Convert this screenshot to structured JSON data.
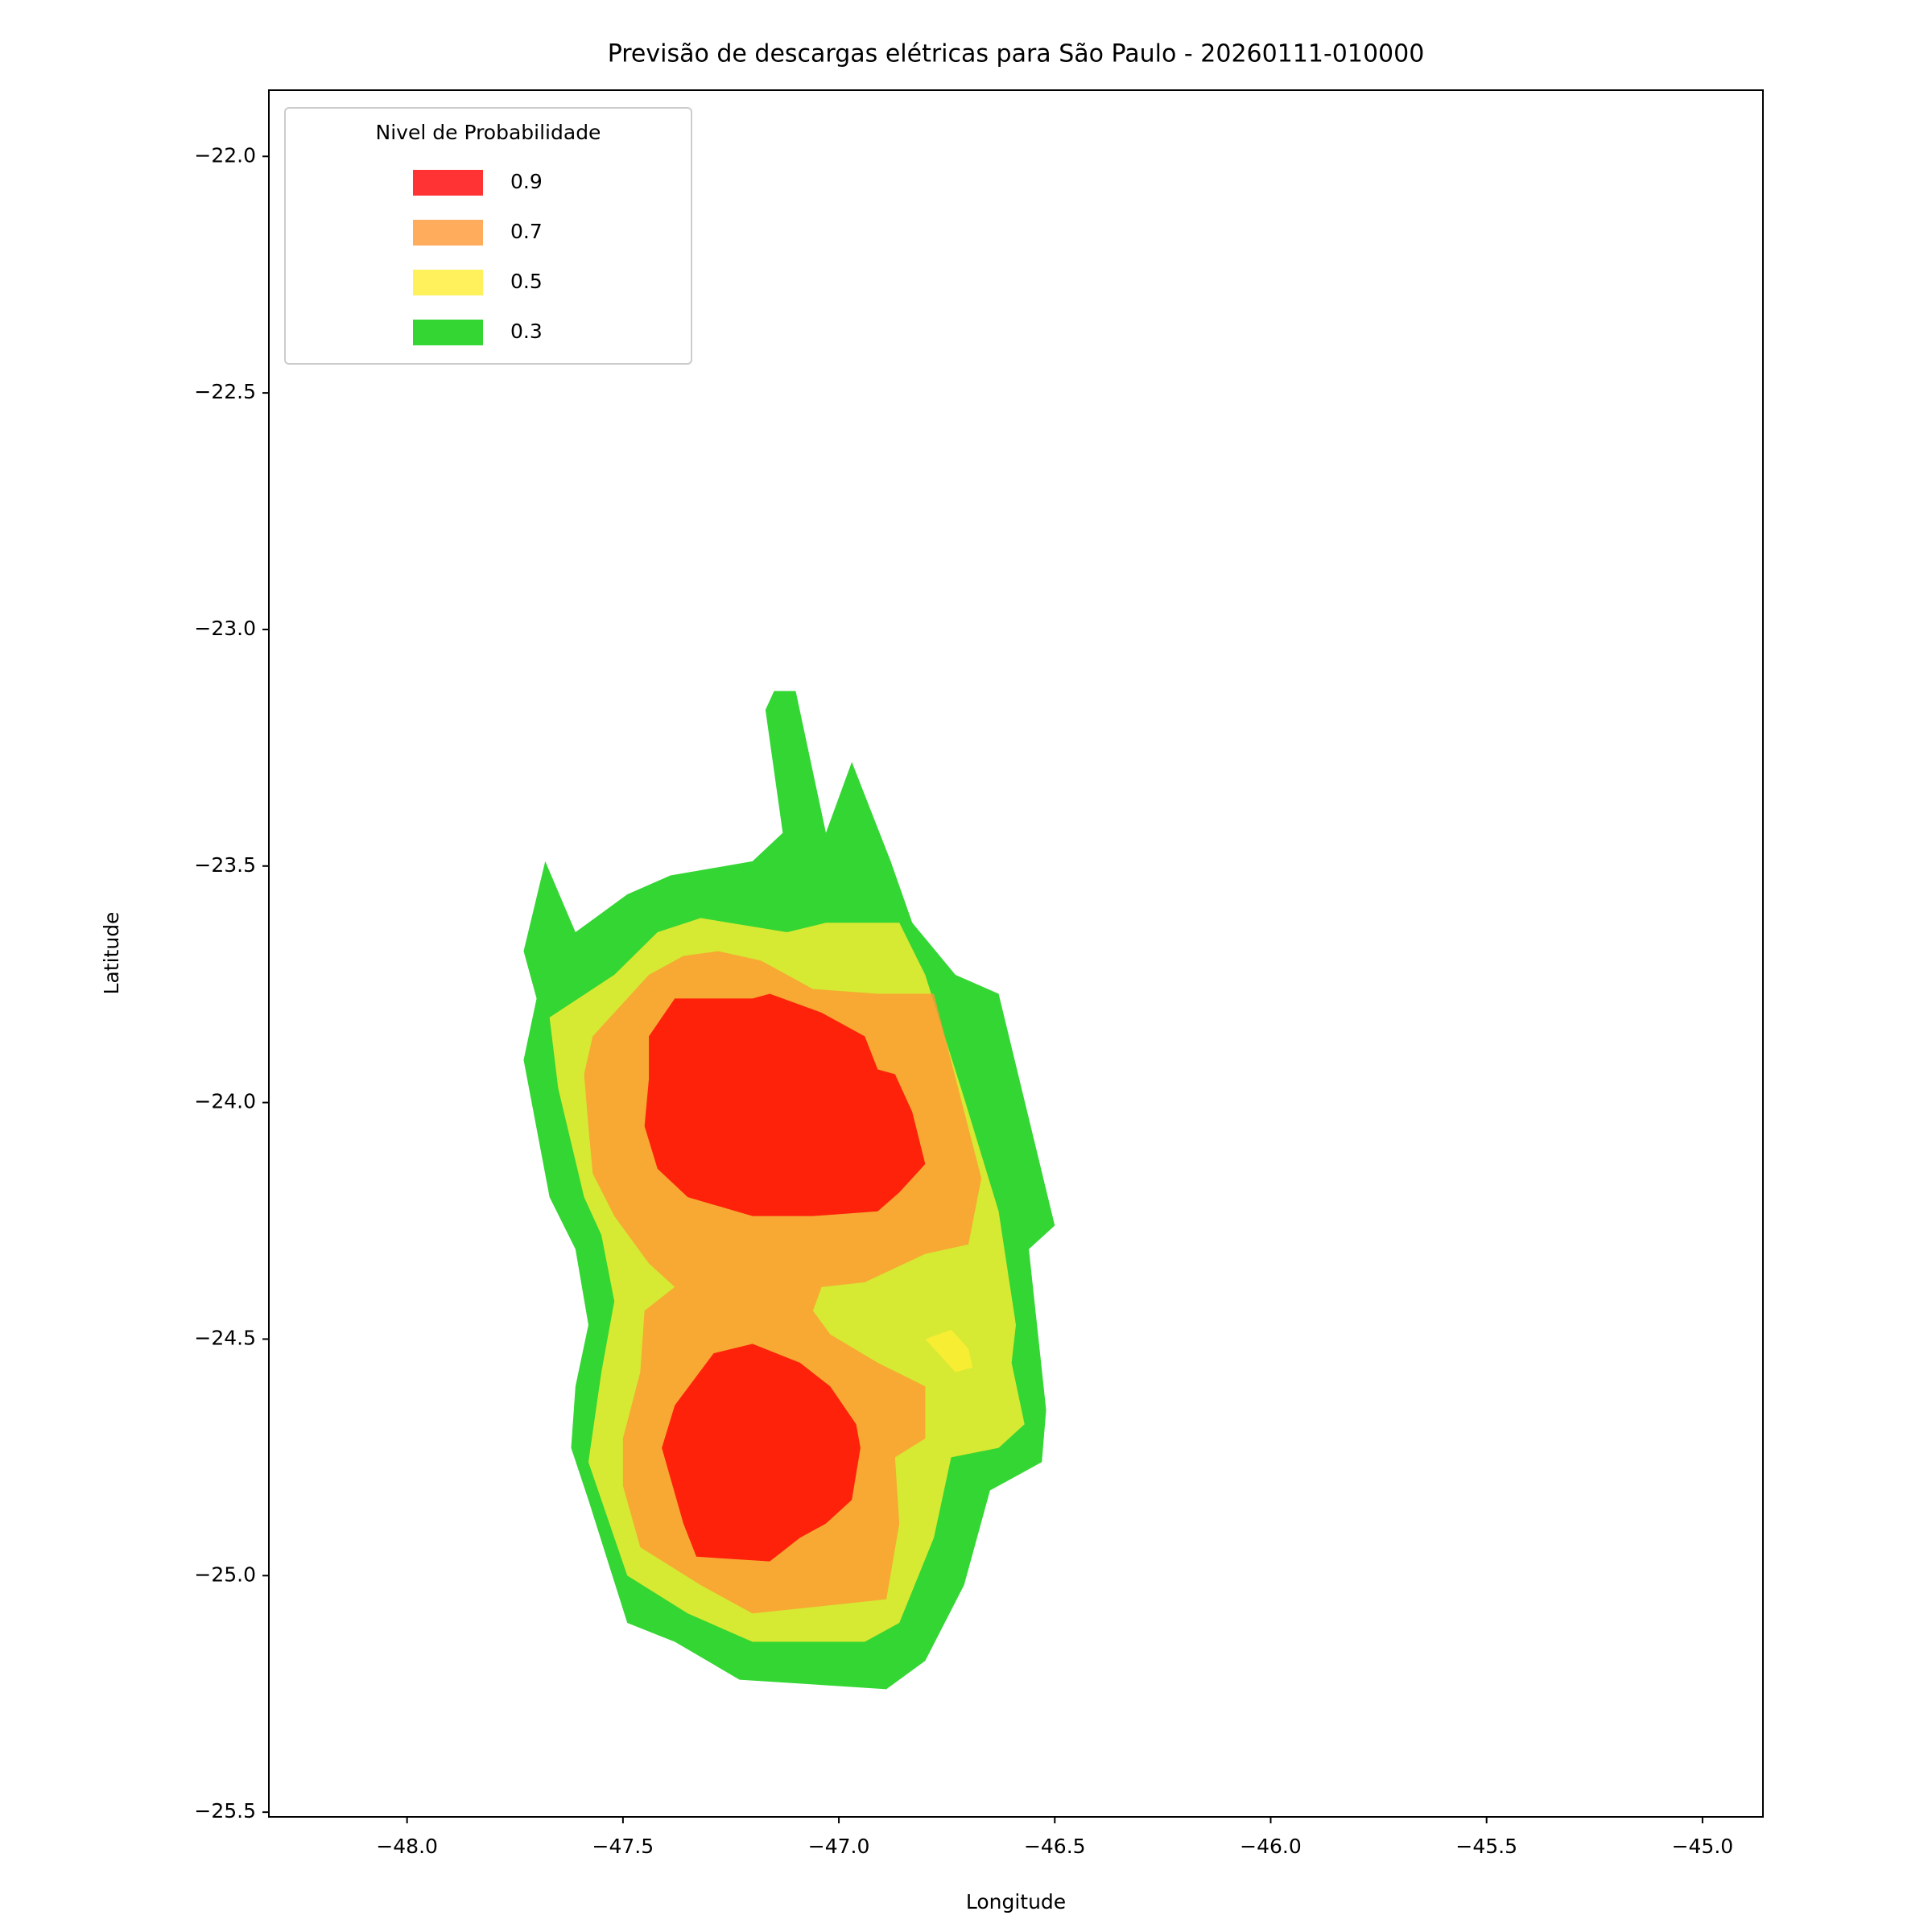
{
  "chart_data": {
    "type": "contourf",
    "title": "Previsão de descargas elétricas para São Paulo - 20260111-010000",
    "x_label": "Longitude",
    "y_label": "Latitude",
    "xlim": [
      -48.32,
      -44.86
    ],
    "ylim": [
      -25.51,
      -21.86
    ],
    "xticks": [
      {
        "value": -48,
        "label": "−48.0"
      },
      {
        "value": -47.5,
        "label": "−47.5"
      },
      {
        "value": -47,
        "label": "−47.0"
      },
      {
        "value": -46.5,
        "label": "−46.5"
      },
      {
        "value": -46,
        "label": "−46.0"
      },
      {
        "value": -45.5,
        "label": "−45.5"
      },
      {
        "value": -45,
        "label": "−45.0"
      }
    ],
    "yticks": [
      {
        "value": -22,
        "label": "−22.0"
      },
      {
        "value": -22.5,
        "label": "−22.5"
      },
      {
        "value": -23,
        "label": "−23.0"
      },
      {
        "value": -23.5,
        "label": "−23.5"
      },
      {
        "value": -24,
        "label": "−24.0"
      },
      {
        "value": -24.5,
        "label": "−24.5"
      },
      {
        "value": -25,
        "label": "−25.0"
      },
      {
        "value": -25.5,
        "label": "−25.5"
      }
    ],
    "legend_title": "Nivel de Probabilidade",
    "legend_position": "upper left",
    "levels": [
      0.9,
      0.7,
      0.5,
      0.3
    ],
    "level_colors": [
      "#ff0000",
      "#ff9933",
      "#ffee33",
      "#00cc00"
    ],
    "alpha": 0.8,
    "regions": [
      {
        "level": 0.3,
        "x": [
          -47.15,
          -47.1,
          -47.03,
          -46.97,
          -46.88,
          -46.83,
          -46.73,
          -46.63,
          -46.5,
          -46.56,
          -46.52,
          -46.53,
          -46.65,
          -46.71,
          -46.8,
          -46.89,
          -47.23,
          -47.38,
          -47.49,
          -47.58,
          -47.62,
          -47.61,
          -47.58,
          -47.61,
          -47.67,
          -47.73,
          -47.7,
          -47.73,
          -47.68,
          -47.61,
          -47.49,
          -47.39,
          -47.2,
          -47.13,
          -47.17
        ],
        "y": [
          -23.13,
          -23.13,
          -23.43,
          -23.28,
          -23.49,
          -23.62,
          -23.73,
          -23.77,
          -24.26,
          -24.31,
          -24.65,
          -24.76,
          -24.82,
          -25.02,
          -25.18,
          -25.24,
          -25.22,
          -25.14,
          -25.1,
          -24.84,
          -24.73,
          -24.6,
          -24.47,
          -24.31,
          -24.2,
          -23.91,
          -23.78,
          -23.68,
          -23.49,
          -23.64,
          -23.56,
          -23.52,
          -23.49,
          -23.43,
          -23.17
        ]
      },
      {
        "level": 0.5,
        "x": [
          -47.67,
          -47.52,
          -47.42,
          -47.32,
          -47.12,
          -47.03,
          -46.86,
          -46.8,
          -46.71,
          -46.63,
          -46.59,
          -46.6,
          -46.57,
          -46.63,
          -46.74,
          -46.78,
          -46.86,
          -46.94,
          -47.2,
          -47.35,
          -47.49,
          -47.52,
          -47.58,
          -47.55,
          -47.52,
          -47.55,
          -47.59,
          -47.65
        ],
        "y": [
          -23.82,
          -23.73,
          -23.64,
          -23.61,
          -23.64,
          -23.62,
          -23.62,
          -23.73,
          -23.99,
          -24.23,
          -24.47,
          -24.55,
          -24.68,
          -24.73,
          -24.75,
          -24.92,
          -25.1,
          -25.14,
          -25.14,
          -25.08,
          -25.0,
          -24.92,
          -24.76,
          -24.57,
          -24.42,
          -24.28,
          -24.2,
          -23.97
        ]
      },
      {
        "level": 0.7,
        "x": [
          -47.59,
          -47.57,
          -47.44,
          -47.36,
          -47.28,
          -47.18,
          -47.06,
          -46.91,
          -46.78,
          -46.67,
          -46.7,
          -46.8,
          -46.94,
          -47.04,
          -47.06,
          -47.02,
          -46.91,
          -46.8,
          -46.8,
          -46.87,
          -46.86,
          -46.89,
          -47.2,
          -47.32,
          -47.46,
          -47.5,
          -47.5,
          -47.46,
          -47.45,
          -47.38,
          -47.44,
          -47.52,
          -47.57,
          -47.58
        ],
        "y": [
          -23.94,
          -23.86,
          -23.73,
          -23.69,
          -23.68,
          -23.7,
          -23.76,
          -23.77,
          -23.77,
          -24.16,
          -24.3,
          -24.32,
          -24.38,
          -24.39,
          -24.44,
          -24.49,
          -24.55,
          -24.6,
          -24.71,
          -24.75,
          -24.89,
          -25.05,
          -25.08,
          -25.02,
          -24.94,
          -24.81,
          -24.71,
          -24.57,
          -24.44,
          -24.39,
          -24.34,
          -24.24,
          -24.15,
          -24.05
        ]
      },
      {
        "level": 0.9,
        "x": [
          -47.44,
          -47.38,
          -47.2,
          -47.16,
          -47.04,
          -46.94,
          -46.91,
          -46.87,
          -46.83,
          -46.8,
          -46.86,
          -46.91,
          -47.06,
          -47.2,
          -47.35,
          -47.42,
          -47.45,
          -47.44
        ],
        "y": [
          -23.86,
          -23.78,
          -23.78,
          -23.77,
          -23.81,
          -23.86,
          -23.93,
          -23.94,
          -24.02,
          -24.13,
          -24.19,
          -24.23,
          -24.24,
          -24.24,
          -24.2,
          -24.14,
          -24.05,
          -23.95
        ]
      },
      {
        "level": 0.9,
        "x": [
          -47.29,
          -47.2,
          -47.09,
          -47.02,
          -46.96,
          -46.95,
          -46.97,
          -47.03,
          -47.09,
          -47.16,
          -47.33,
          -47.36,
          -47.41,
          -47.38
        ],
        "y": [
          -24.53,
          -24.51,
          -24.55,
          -24.6,
          -24.68,
          -24.73,
          -24.84,
          -24.89,
          -24.92,
          -24.97,
          -24.96,
          -24.89,
          -24.73,
          -24.64
        ]
      },
      {
        "level": 0.5,
        "x": [
          -46.8,
          -46.74,
          -46.7,
          -46.69,
          -46.73,
          -46.78
        ],
        "y": [
          -24.5,
          -24.48,
          -24.52,
          -24.56,
          -24.57,
          -24.52
        ]
      }
    ]
  }
}
